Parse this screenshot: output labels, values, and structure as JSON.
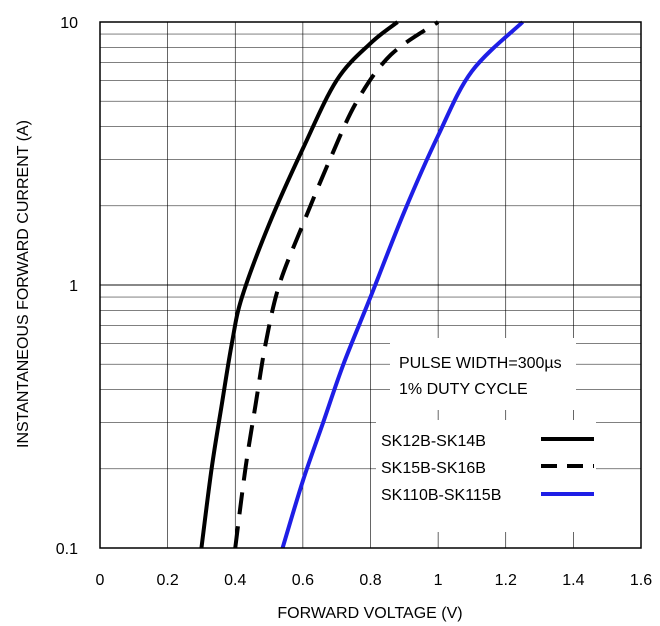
{
  "chart_data": {
    "type": "line",
    "title": "",
    "xlabel": "FORWARD VOLTAGE (V)",
    "ylabel": "INSTANTANEOUS FORWARD CURRENT (A)",
    "xlim": [
      0,
      1.6
    ],
    "ylim": [
      0.1,
      10
    ],
    "yscale": "log",
    "grid": true,
    "x_ticks": [
      "0",
      "0.2",
      "0.4",
      "0.6",
      "0.8",
      "1",
      "1.2",
      "1.4",
      "1.6"
    ],
    "y_ticks": [
      "0.1",
      "1",
      "10"
    ],
    "annotation": [
      "PULSE WIDTH=300µs",
      "1% DUTY CYCLE"
    ],
    "legend_placement": "bottom-right",
    "series": [
      {
        "name": "SK12B-SK14B",
        "color": "#000000",
        "dash": "solid",
        "x": [
          0.3,
          0.33,
          0.36,
          0.39,
          0.42,
          0.5,
          0.6,
          0.7,
          0.8,
          0.88
        ],
        "y": [
          0.1,
          0.2,
          0.35,
          0.6,
          0.9,
          1.7,
          3.3,
          6.0,
          8.3,
          10
        ]
      },
      {
        "name": "SK15B-SK16B",
        "color": "#000000",
        "dash": "dashed",
        "x": [
          0.4,
          0.43,
          0.46,
          0.49,
          0.53,
          0.6,
          0.68,
          0.76,
          0.86,
          1.0
        ],
        "y": [
          0.1,
          0.2,
          0.35,
          0.6,
          1.0,
          1.7,
          3.0,
          5.0,
          7.5,
          10
        ]
      },
      {
        "name": "SK110B-SK115B",
        "color": "#1e1ee6",
        "dash": "solid",
        "x": [
          0.54,
          0.6,
          0.66,
          0.72,
          0.8,
          0.9,
          1.0,
          1.1,
          1.25
        ],
        "y": [
          0.1,
          0.18,
          0.3,
          0.5,
          0.9,
          1.9,
          3.7,
          6.5,
          10
        ]
      }
    ]
  }
}
